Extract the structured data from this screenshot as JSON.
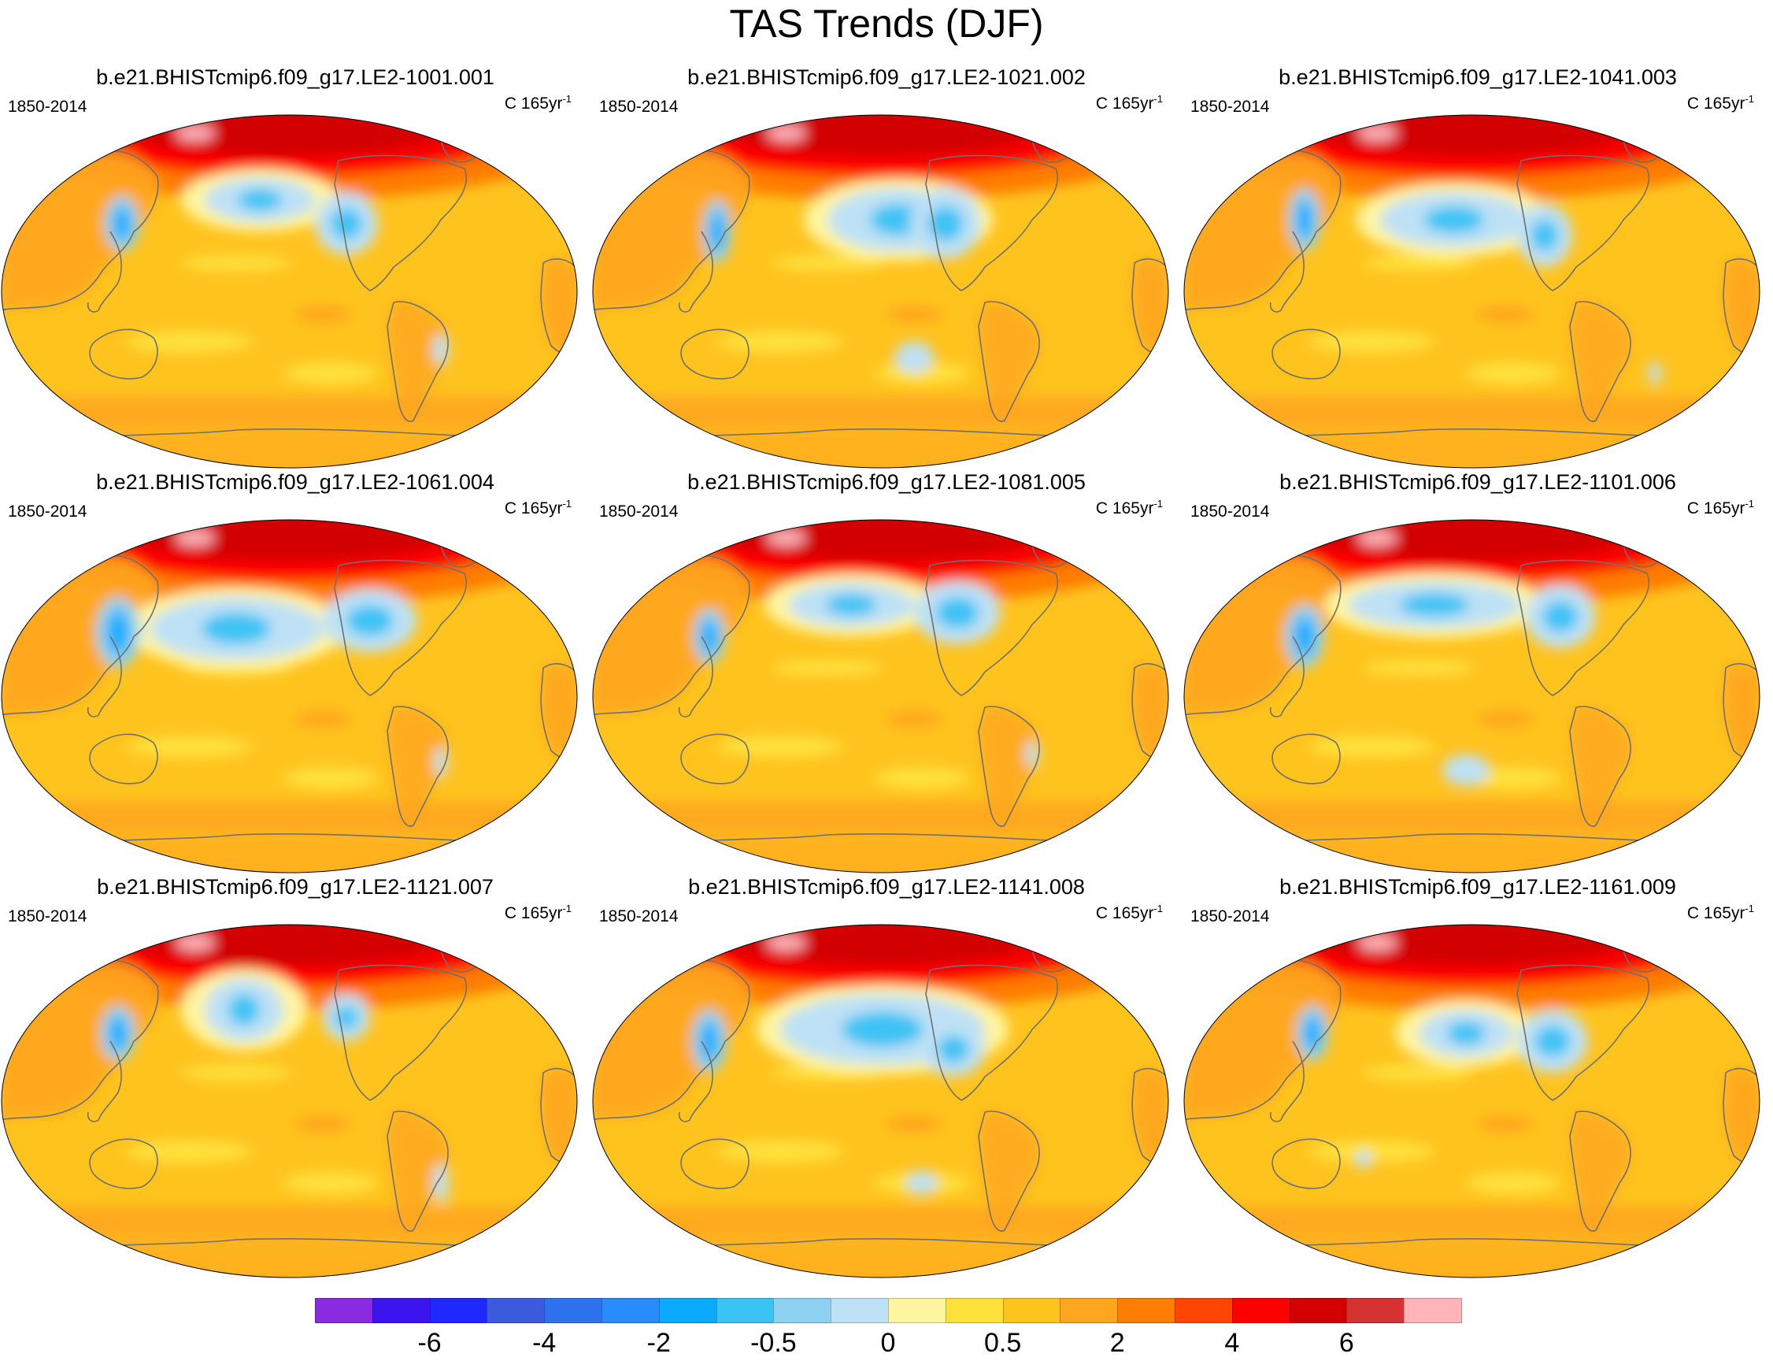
{
  "figure": {
    "title": "TAS Trends (DJF)",
    "period": "1850-2014",
    "units_prefix": "C 165yr",
    "units_exp": "-1"
  },
  "panels": [
    "b.e21.BHISTcmip6.f09_g17.LE2-1001.001",
    "b.e21.BHISTcmip6.f09_g17.LE2-1021.002",
    "b.e21.BHISTcmip6.f09_g17.LE2-1041.003",
    "b.e21.BHISTcmip6.f09_g17.LE2-1061.004",
    "b.e21.BHISTcmip6.f09_g17.LE2-1081.005",
    "b.e21.BHISTcmip6.f09_g17.LE2-1101.006",
    "b.e21.BHISTcmip6.f09_g17.LE2-1121.007",
    "b.e21.BHISTcmip6.f09_g17.LE2-1141.008",
    "b.e21.BHISTcmip6.f09_g17.LE2-1161.009"
  ],
  "colorbar": {
    "colors": [
      "#8a2be2",
      "#3c14f0",
      "#1e28ff",
      "#3c5adc",
      "#2d73f0",
      "#288cff",
      "#0aaaff",
      "#3cc3f5",
      "#8cd2f0",
      "#bee1f5",
      "#fff5a0",
      "#ffe13c",
      "#ffc31e",
      "#ffa51e",
      "#ff7d00",
      "#ff4600",
      "#ff0000",
      "#d20000",
      "#d73232",
      "#ffb4b9"
    ],
    "tick_labels": [
      "-6",
      "-4",
      "-2",
      "-0.5",
      "0",
      "0.5",
      "2",
      "4",
      "6"
    ]
  },
  "colors": {
    "land_outline": "#707070",
    "warm_base": "#ffc31e"
  }
}
